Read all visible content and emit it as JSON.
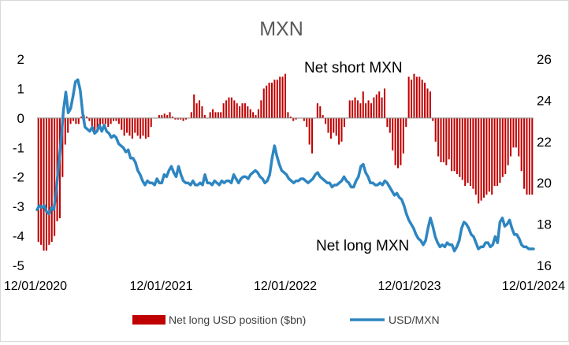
{
  "chart_data": {
    "type": "bar",
    "title": "MXN",
    "x_labels": [
      "12/01/2020",
      "12/01/2021",
      "12/01/2022",
      "12/01/2023",
      "12/01/2024"
    ],
    "y_left": {
      "ylim": [
        -5,
        2
      ],
      "ticks": [
        2,
        1,
        0,
        -1,
        -2,
        -3,
        -4,
        -5
      ]
    },
    "y_right": {
      "ylim": [
        16,
        26
      ],
      "ticks": [
        26,
        24,
        22,
        20,
        18,
        16
      ]
    },
    "annotations": [
      "Net short MXN",
      "Net long MXN"
    ],
    "series": [
      {
        "name": "Net long USD position ($bn)",
        "type": "bar",
        "axis": "left",
        "color": "#c00000",
        "values": [
          -4.2,
          -4.3,
          -4.5,
          -4.5,
          -4.3,
          -4.2,
          -4.0,
          -3.5,
          -3.4,
          -2.0,
          -0.9,
          -0.5,
          -0.2,
          -0.1,
          -0.2,
          -0.2,
          0.05,
          0.1,
          0.05,
          -0.1,
          -0.3,
          -0.5,
          -0.4,
          -0.3,
          -0.2,
          -0.2,
          -0.3,
          -0.2,
          -0.1,
          -0.1,
          -0.2,
          -0.4,
          -0.6,
          -0.5,
          -0.6,
          -0.7,
          -0.5,
          -0.6,
          -0.7,
          -0.6,
          -0.7,
          -0.65,
          -0.3,
          0.0,
          0.0,
          0.1,
          0.1,
          0.15,
          0.1,
          0.2,
          0.05,
          -0.05,
          -0.05,
          -0.05,
          -0.1,
          -0.05,
          0.0,
          0.2,
          0.8,
          0.5,
          0.6,
          0.4,
          0.1,
          0.0,
          0.2,
          0.3,
          0.2,
          0.2,
          0.2,
          0.5,
          0.6,
          0.7,
          0.7,
          0.6,
          0.5,
          0.4,
          0.5,
          0.5,
          0.4,
          0.3,
          0.2,
          0.1,
          0.3,
          0.6,
          1.0,
          1.1,
          1.2,
          1.2,
          1.3,
          1.3,
          1.4,
          1.4,
          1.5,
          0.2,
          0.05,
          -0.1,
          -0.05,
          0.0,
          0.0,
          -0.1,
          -0.3,
          -0.9,
          -1.2,
          0.0,
          0.5,
          0.4,
          0.1,
          -0.2,
          -0.5,
          -0.7,
          -0.5,
          -0.6,
          -0.9,
          -0.8,
          -0.3,
          0.0,
          0.6,
          0.6,
          0.7,
          0.6,
          0.5,
          0.9,
          0.5,
          0.6,
          0.5,
          0.7,
          0.8,
          0.9,
          0.7,
          1.0,
          -0.3,
          -0.5,
          -1.1,
          -1.6,
          -1.7,
          -1.6,
          -1.2,
          -0.3,
          1.4,
          1.3,
          1.5,
          1.4,
          1.4,
          1.3,
          1.2,
          1.0,
          0.9,
          -0.1,
          -0.8,
          -1.3,
          -1.5,
          -1.5,
          -1.6,
          -1.4,
          -1.8,
          -1.8,
          -1.9,
          -2.0,
          -2.1,
          -2.3,
          -2.2,
          -2.3,
          -2.4,
          -2.6,
          -2.9,
          -2.8,
          -2.7,
          -2.6,
          -2.5,
          -2.6,
          -2.3,
          -2.3,
          -2.2,
          -2.0,
          -1.9,
          -1.6,
          -1.3,
          -1.0,
          -1.0,
          -1.3,
          -1.8,
          -2.4,
          -2.6,
          -2.6,
          -2.6
        ]
      },
      {
        "name": "USD/MXN",
        "type": "line",
        "axis": "right",
        "color": "#2e86c1",
        "values": [
          18.7,
          18.9,
          18.8,
          18.9,
          18.6,
          18.5,
          18.8,
          18.7,
          19.6,
          20.9,
          22.0,
          23.5,
          24.4,
          23.4,
          23.6,
          24.2,
          24.9,
          25.0,
          24.5,
          23.4,
          22.7,
          22.6,
          22.5,
          22.7,
          22.4,
          22.5,
          22.8,
          22.5,
          22.8,
          22.5,
          22.4,
          22.2,
          22.3,
          22.2,
          21.9,
          21.8,
          21.7,
          21.5,
          21.6,
          21.2,
          21.2,
          21.0,
          20.6,
          20.4,
          20.1,
          19.9,
          20.1,
          20.0,
          20.0,
          19.9,
          20.2,
          20.0,
          20.0,
          20.4,
          20.3,
          20.6,
          20.8,
          20.5,
          20.3,
          20.8,
          20.4,
          20.1,
          20.0,
          20.0,
          19.9,
          20.1,
          19.9,
          19.9,
          20.0,
          19.9,
          20.4,
          20.0,
          20.0,
          19.9,
          20.1,
          20.0,
          19.9,
          20.1,
          20.0,
          20.1,
          20.1,
          20.0,
          20.4,
          20.2,
          20.0,
          20.2,
          20.3,
          20.3,
          20.2,
          20.4,
          20.5,
          20.6,
          20.5,
          20.3,
          20.2,
          20.0,
          20.1,
          20.4,
          21.2,
          21.8,
          21.3,
          20.9,
          20.6,
          20.5,
          20.4,
          20.2,
          20.1,
          20.0,
          20.1,
          20.1,
          20.2,
          20.2,
          20.1,
          20.0,
          20.1,
          20.2,
          20.4,
          20.5,
          20.3,
          20.2,
          20.1,
          20.0,
          20.0,
          19.8,
          19.9,
          19.9,
          20.0,
          20.1,
          20.3,
          20.1,
          20.0,
          19.8,
          19.8,
          20.1,
          20.3,
          20.8,
          20.9,
          20.5,
          20.3,
          20.0,
          20.0,
          19.9,
          19.9,
          20.0,
          19.9,
          20.1,
          20.0,
          19.8,
          19.6,
          19.4,
          19.5,
          19.3,
          19.2,
          18.9,
          18.5,
          18.2,
          18.0,
          17.8,
          17.5,
          17.3,
          17.2,
          17.0,
          17.2,
          17.8,
          18.3,
          17.9,
          17.4,
          17.1,
          16.9,
          17.0,
          16.9,
          17.1,
          17.0,
          17.0,
          16.7,
          16.9,
          17.2,
          17.8,
          18.1,
          18.0,
          17.8,
          17.5,
          17.4,
          17.1,
          16.8,
          16.9,
          16.9,
          17.1,
          17.1,
          16.9,
          17.0,
          17.4,
          17.1,
          18.1,
          18.3,
          17.9,
          18.0,
          18.2,
          17.8,
          17.5,
          17.5,
          17.3,
          17.0,
          16.9,
          16.9,
          16.8,
          16.8,
          16.8
        ]
      }
    ]
  }
}
